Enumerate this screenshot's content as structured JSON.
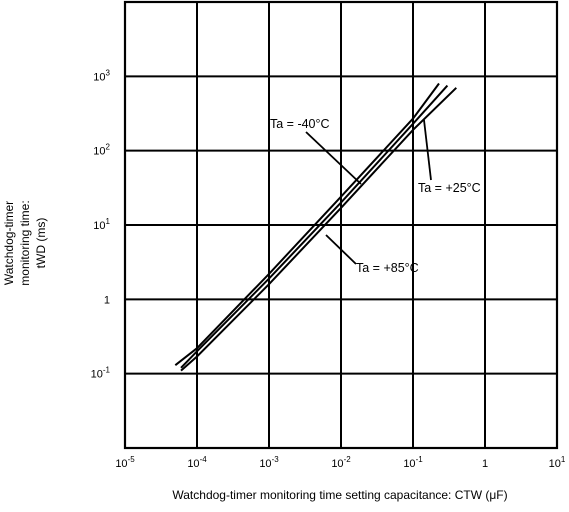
{
  "chart_data": {
    "type": "line",
    "xscale": "log",
    "yscale": "log",
    "xlim": [
      1e-05,
      10
    ],
    "ylim": [
      0.01,
      10000
    ],
    "grid": true,
    "x_ticks": [
      {
        "value": 1e-05,
        "base": "10",
        "exp": "-5"
      },
      {
        "value": 0.0001,
        "base": "10",
        "exp": "-4"
      },
      {
        "value": 0.001,
        "base": "10",
        "exp": "-3"
      },
      {
        "value": 0.01,
        "base": "10",
        "exp": "-2"
      },
      {
        "value": 0.1,
        "base": "10",
        "exp": "-1"
      },
      {
        "value": 1,
        "base": "1",
        "exp": ""
      },
      {
        "value": 10,
        "base": "10",
        "exp": "1"
      }
    ],
    "y_ticks": [
      {
        "value": 0.1,
        "base": "10",
        "exp": "-1"
      },
      {
        "value": 1,
        "base": "1",
        "exp": ""
      },
      {
        "value": 10,
        "base": "10",
        "exp": "1"
      },
      {
        "value": 100,
        "base": "10",
        "exp": "2"
      },
      {
        "value": 1000,
        "base": "10",
        "exp": "3"
      }
    ],
    "ylabel_lines": [
      "Watchdog-timer",
      "monitoring time:",
      "tWD (ms)"
    ],
    "xlabel": "Watchdog-timer monitoring time setting capacitance:  CTW (μF)",
    "series": [
      {
        "label": "Ta = -40°C",
        "x": [
          5e-05,
          0.0001,
          0.001,
          0.01,
          0.1,
          0.23
        ],
        "y": [
          0.13,
          0.22,
          2.2,
          24,
          270,
          800
        ]
      },
      {
        "label": "Ta = +25°C",
        "x": [
          6e-05,
          0.0001,
          0.001,
          0.01,
          0.1,
          0.3
        ],
        "y": [
          0.12,
          0.2,
          1.9,
          20,
          230,
          750
        ]
      },
      {
        "label": "Ta = +85°C",
        "x": [
          6e-05,
          0.0001,
          0.001,
          0.01,
          0.1,
          0.4
        ],
        "y": [
          0.11,
          0.17,
          1.6,
          17,
          190,
          700
        ]
      }
    ],
    "annotations": [
      {
        "text": "Ta = -40°C",
        "series": 0
      },
      {
        "text": "Ta = +25°C",
        "series": 1
      },
      {
        "text": "Ta = +85°C",
        "series": 2
      }
    ]
  }
}
